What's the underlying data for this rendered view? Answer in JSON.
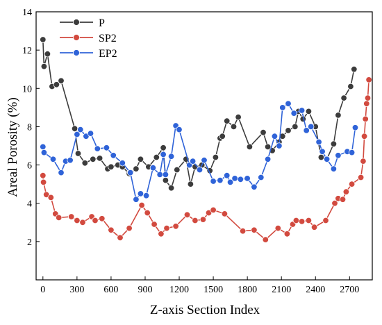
{
  "chart_data": {
    "type": "line",
    "xlabel": "Z-axis Section Index",
    "ylabel": "Areal Porosity (%)",
    "xlim": [
      -60,
      2900
    ],
    "ylim": [
      0,
      14
    ],
    "x_ticks": [
      0,
      300,
      600,
      900,
      1200,
      1500,
      1800,
      2100,
      2400,
      2700
    ],
    "y_ticks": [
      2,
      4,
      6,
      8,
      10,
      12,
      14
    ],
    "legend_position": "top-left",
    "grid": false,
    "series": [
      {
        "name": "P",
        "color": "#3c3c3c",
        "points": [
          [
            0,
            12.55
          ],
          [
            10,
            11.15
          ],
          [
            40,
            11.8
          ],
          [
            80,
            10.1
          ],
          [
            120,
            10.2
          ],
          [
            160,
            10.4
          ],
          [
            280,
            7.9
          ],
          [
            310,
            6.6
          ],
          [
            370,
            6.1
          ],
          [
            440,
            6.3
          ],
          [
            500,
            6.35
          ],
          [
            570,
            5.8
          ],
          [
            600,
            5.9
          ],
          [
            660,
            6.0
          ],
          [
            700,
            5.9
          ],
          [
            760,
            5.55
          ],
          [
            820,
            5.8
          ],
          [
            860,
            6.3
          ],
          [
            930,
            5.9
          ],
          [
            1000,
            6.4
          ],
          [
            1060,
            6.9
          ],
          [
            1080,
            5.2
          ],
          [
            1130,
            4.8
          ],
          [
            1180,
            5.75
          ],
          [
            1260,
            6.3
          ],
          [
            1300,
            5.0
          ],
          [
            1340,
            5.9
          ],
          [
            1400,
            6.0
          ],
          [
            1470,
            5.7
          ],
          [
            1520,
            6.4
          ],
          [
            1560,
            7.4
          ],
          [
            1580,
            7.5
          ],
          [
            1620,
            8.3
          ],
          [
            1680,
            8.0
          ],
          [
            1720,
            8.5
          ],
          [
            1820,
            6.95
          ],
          [
            1940,
            7.7
          ],
          [
            1980,
            6.95
          ],
          [
            2020,
            6.75
          ],
          [
            2080,
            7.2
          ],
          [
            2110,
            7.5
          ],
          [
            2160,
            7.8
          ],
          [
            2220,
            8.0
          ],
          [
            2250,
            8.8
          ],
          [
            2290,
            8.4
          ],
          [
            2340,
            8.8
          ],
          [
            2400,
            8.0
          ],
          [
            2450,
            6.4
          ],
          [
            2500,
            6.3
          ],
          [
            2560,
            7.1
          ],
          [
            2600,
            8.6
          ],
          [
            2650,
            9.5
          ],
          [
            2710,
            10.1
          ],
          [
            2740,
            11.0
          ]
        ]
      },
      {
        "name": "SP2",
        "color": "#d24a3f",
        "points": [
          [
            0,
            5.45
          ],
          [
            5,
            5.1
          ],
          [
            30,
            4.45
          ],
          [
            70,
            4.3
          ],
          [
            110,
            3.45
          ],
          [
            140,
            3.25
          ],
          [
            250,
            3.3
          ],
          [
            300,
            3.1
          ],
          [
            350,
            3.0
          ],
          [
            430,
            3.3
          ],
          [
            460,
            3.1
          ],
          [
            520,
            3.2
          ],
          [
            600,
            2.6
          ],
          [
            680,
            2.2
          ],
          [
            760,
            2.7
          ],
          [
            870,
            3.9
          ],
          [
            920,
            3.5
          ],
          [
            980,
            2.9
          ],
          [
            1040,
            2.4
          ],
          [
            1090,
            2.7
          ],
          [
            1170,
            2.8
          ],
          [
            1270,
            3.4
          ],
          [
            1340,
            3.1
          ],
          [
            1410,
            3.15
          ],
          [
            1460,
            3.5
          ],
          [
            1500,
            3.65
          ],
          [
            1600,
            3.45
          ],
          [
            1760,
            2.55
          ],
          [
            1860,
            2.6
          ],
          [
            1960,
            2.1
          ],
          [
            2070,
            2.7
          ],
          [
            2150,
            2.4
          ],
          [
            2200,
            2.9
          ],
          [
            2230,
            3.1
          ],
          [
            2280,
            3.05
          ],
          [
            2340,
            3.1
          ],
          [
            2390,
            2.75
          ],
          [
            2490,
            3.1
          ],
          [
            2570,
            4.0
          ],
          [
            2600,
            4.25
          ],
          [
            2640,
            4.2
          ],
          [
            2670,
            4.6
          ],
          [
            2720,
            5.0
          ],
          [
            2800,
            5.35
          ],
          [
            2820,
            6.2
          ],
          [
            2830,
            7.5
          ],
          [
            2840,
            8.4
          ],
          [
            2850,
            9.2
          ],
          [
            2860,
            9.5
          ],
          [
            2870,
            10.45
          ]
        ]
      },
      {
        "name": "EP2",
        "color": "#2f63d8",
        "points": [
          [
            0,
            6.95
          ],
          [
            10,
            6.65
          ],
          [
            90,
            6.3
          ],
          [
            160,
            5.6
          ],
          [
            200,
            6.2
          ],
          [
            240,
            6.25
          ],
          [
            300,
            7.6
          ],
          [
            330,
            7.85
          ],
          [
            380,
            7.5
          ],
          [
            420,
            7.65
          ],
          [
            480,
            6.85
          ],
          [
            560,
            6.9
          ],
          [
            620,
            6.5
          ],
          [
            700,
            6.1
          ],
          [
            770,
            5.6
          ],
          [
            820,
            4.2
          ],
          [
            860,
            4.5
          ],
          [
            910,
            4.4
          ],
          [
            970,
            5.85
          ],
          [
            1030,
            5.5
          ],
          [
            1060,
            6.55
          ],
          [
            1080,
            5.5
          ],
          [
            1130,
            6.45
          ],
          [
            1170,
            8.05
          ],
          [
            1200,
            7.85
          ],
          [
            1290,
            6.0
          ],
          [
            1320,
            6.2
          ],
          [
            1380,
            5.75
          ],
          [
            1420,
            6.25
          ],
          [
            1500,
            5.15
          ],
          [
            1560,
            5.2
          ],
          [
            1620,
            5.45
          ],
          [
            1650,
            5.1
          ],
          [
            1690,
            5.3
          ],
          [
            1740,
            5.25
          ],
          [
            1800,
            5.3
          ],
          [
            1860,
            4.85
          ],
          [
            1920,
            5.35
          ],
          [
            1980,
            6.3
          ],
          [
            2040,
            7.5
          ],
          [
            2080,
            7.0
          ],
          [
            2110,
            9.0
          ],
          [
            2160,
            9.2
          ],
          [
            2210,
            8.7
          ],
          [
            2280,
            8.85
          ],
          [
            2320,
            7.8
          ],
          [
            2360,
            8.0
          ],
          [
            2430,
            7.2
          ],
          [
            2460,
            6.7
          ],
          [
            2500,
            6.3
          ],
          [
            2560,
            5.8
          ],
          [
            2600,
            6.5
          ],
          [
            2680,
            6.7
          ],
          [
            2720,
            6.65
          ],
          [
            2750,
            7.95
          ]
        ]
      }
    ]
  }
}
